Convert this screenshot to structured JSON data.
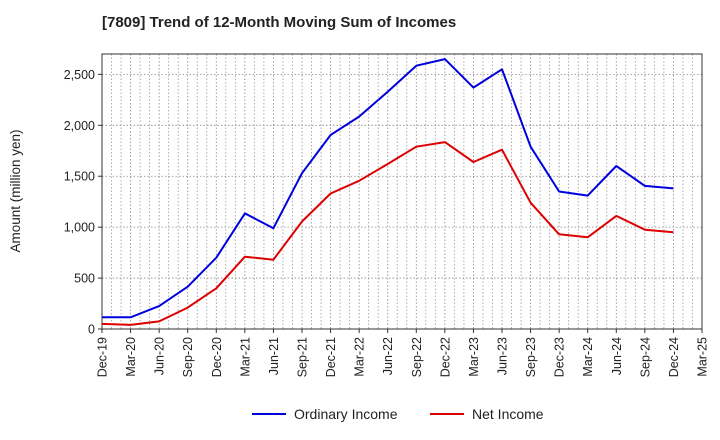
{
  "chart_data": {
    "type": "line",
    "title": "[7809]  Trend of 12-Month Moving Sum of Incomes",
    "ylabel": "Amount (million yen)",
    "xlabel": "",
    "ylim": [
      0,
      2700
    ],
    "yticks": [
      0,
      500,
      1000,
      1500,
      2000,
      2500
    ],
    "ytick_labels": [
      "0",
      "500",
      "1,000",
      "1,500",
      "2,000",
      "2,500"
    ],
    "categories": [
      "Dec-19",
      "Mar-20",
      "Jun-20",
      "Sep-20",
      "Dec-20",
      "Mar-21",
      "Jun-21",
      "Sep-21",
      "Dec-21",
      "Mar-22",
      "Jun-22",
      "Sep-22",
      "Dec-22",
      "Mar-23",
      "Jun-23",
      "Sep-23",
      "Dec-23",
      "Mar-24",
      "Jun-24",
      "Sep-24",
      "Dec-24",
      "Mar-25"
    ],
    "grid": true,
    "legend_position": "bottom-center",
    "series": [
      {
        "name": "Ordinary Income",
        "color": "#0000dd",
        "values": [
          115,
          115,
          225,
          415,
          700,
          1135,
          990,
          1530,
          1905,
          2085,
          2330,
          2585,
          2650,
          2370,
          2550,
          1790,
          1350,
          1310,
          1600,
          1405,
          1380,
          null
        ]
      },
      {
        "name": "Net Income",
        "color": "#dd0000",
        "values": [
          50,
          40,
          75,
          210,
          400,
          710,
          680,
          1055,
          1330,
          1455,
          1620,
          1790,
          1835,
          1640,
          1760,
          1240,
          930,
          900,
          1110,
          975,
          950,
          null
        ]
      }
    ]
  }
}
